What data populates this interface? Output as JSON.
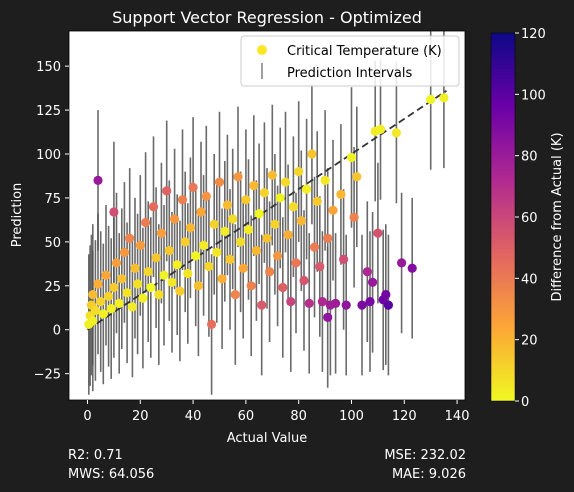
{
  "chart_data": {
    "type": "scatter",
    "title": "Support Vector Regression - Optimized",
    "xlabel": "Actual Value",
    "ylabel": "Prediction",
    "xlim": [
      -7,
      143
    ],
    "ylim": [
      -40,
      170
    ],
    "xticks": [
      0,
      20,
      40,
      60,
      80,
      100,
      120,
      140
    ],
    "yticks": [
      -25,
      0,
      25,
      50,
      75,
      100,
      125,
      150
    ],
    "legend_position": "top-right",
    "legend": [
      {
        "label": "Critical Temperature (K)",
        "kind": "marker",
        "color": "#fde725"
      },
      {
        "label": "Prediction Intervals",
        "kind": "errorbar",
        "color": "#808080"
      }
    ],
    "colorbar": {
      "label": "Difference from Actual (K)",
      "colormap": "plasma_r",
      "min": 0,
      "max": 120,
      "ticks": [
        0,
        20,
        40,
        60,
        80,
        100,
        120
      ]
    },
    "reference_line": {
      "style": "dashed",
      "color": "#333333",
      "x": [
        0,
        136
      ],
      "y": [
        0,
        136
      ]
    },
    "interval_half_width": 40,
    "series": [
      {
        "points": [
          {
            "x": 0.5,
            "y": 3
          },
          {
            "x": 1,
            "y": 8
          },
          {
            "x": 1.5,
            "y": 14
          },
          {
            "x": 2,
            "y": 5
          },
          {
            "x": 2,
            "y": 20
          },
          {
            "x": 3,
            "y": 11
          },
          {
            "x": 4,
            "y": 26
          },
          {
            "x": 4,
            "y": 85
          },
          {
            "x": 5,
            "y": 16
          },
          {
            "x": 6,
            "y": 9
          },
          {
            "x": 7,
            "y": 31
          },
          {
            "x": 8,
            "y": 19
          },
          {
            "x": 9,
            "y": 12
          },
          {
            "x": 10,
            "y": 67
          },
          {
            "x": 10,
            "y": 24
          },
          {
            "x": 11,
            "y": 38
          },
          {
            "x": 12,
            "y": 15
          },
          {
            "x": 13,
            "y": 29
          },
          {
            "x": 14,
            "y": 44
          },
          {
            "x": 15,
            "y": 21
          },
          {
            "x": 16,
            "y": 52
          },
          {
            "x": 17,
            "y": 13
          },
          {
            "x": 18,
            "y": 35
          },
          {
            "x": 19,
            "y": 26
          },
          {
            "x": 20,
            "y": 48
          },
          {
            "x": 21,
            "y": 18
          },
          {
            "x": 22,
            "y": 61
          },
          {
            "x": 23,
            "y": 33
          },
          {
            "x": 24,
            "y": 24
          },
          {
            "x": 25,
            "y": 70
          },
          {
            "x": 26,
            "y": 41
          },
          {
            "x": 27,
            "y": 20
          },
          {
            "x": 28,
            "y": 55
          },
          {
            "x": 29,
            "y": 31
          },
          {
            "x": 30,
            "y": 79
          },
          {
            "x": 31,
            "y": 45
          },
          {
            "x": 32,
            "y": 27
          },
          {
            "x": 33,
            "y": 63
          },
          {
            "x": 34,
            "y": 37
          },
          {
            "x": 35,
            "y": 22
          },
          {
            "x": 36,
            "y": 74
          },
          {
            "x": 37,
            "y": 50
          },
          {
            "x": 38,
            "y": 32
          },
          {
            "x": 39,
            "y": 58
          },
          {
            "x": 40,
            "y": 81
          },
          {
            "x": 41,
            "y": 42
          },
          {
            "x": 42,
            "y": 25
          },
          {
            "x": 43,
            "y": 67
          },
          {
            "x": 44,
            "y": 48
          },
          {
            "x": 45,
            "y": 76
          },
          {
            "x": 46,
            "y": 36
          },
          {
            "x": 47,
            "y": 3
          },
          {
            "x": 48,
            "y": 60
          },
          {
            "x": 49,
            "y": 44
          },
          {
            "x": 50,
            "y": 84
          },
          {
            "x": 51,
            "y": 29
          },
          {
            "x": 52,
            "y": 56
          },
          {
            "x": 53,
            "y": 71
          },
          {
            "x": 54,
            "y": 40
          },
          {
            "x": 55,
            "y": 63
          },
          {
            "x": 56,
            "y": 20
          },
          {
            "x": 57,
            "y": 87
          },
          {
            "x": 58,
            "y": 50
          },
          {
            "x": 59,
            "y": 35
          },
          {
            "x": 60,
            "y": 74
          },
          {
            "x": 61,
            "y": 57
          },
          {
            "x": 62,
            "y": 25
          },
          {
            "x": 63,
            "y": 82
          },
          {
            "x": 64,
            "y": 45
          },
          {
            "x": 65,
            "y": 66
          },
          {
            "x": 66,
            "y": 14
          },
          {
            "x": 67,
            "y": 78
          },
          {
            "x": 68,
            "y": 52
          },
          {
            "x": 69,
            "y": 33
          },
          {
            "x": 70,
            "y": 88
          },
          {
            "x": 71,
            "y": 60
          },
          {
            "x": 72,
            "y": 42
          },
          {
            "x": 73,
            "y": 75
          },
          {
            "x": 74,
            "y": 24
          },
          {
            "x": 75,
            "y": 84
          },
          {
            "x": 76,
            "y": 54
          },
          {
            "x": 77,
            "y": 16
          },
          {
            "x": 78,
            "y": 70
          },
          {
            "x": 79,
            "y": 38
          },
          {
            "x": 80,
            "y": 90
          },
          {
            "x": 81,
            "y": 62
          },
          {
            "x": 82,
            "y": 28
          },
          {
            "x": 83,
            "y": 80
          },
          {
            "x": 84,
            "y": 15
          },
          {
            "x": 85,
            "y": 100
          },
          {
            "x": 86,
            "y": 47
          },
          {
            "x": 87,
            "y": 73
          },
          {
            "x": 88,
            "y": 36
          },
          {
            "x": 89,
            "y": 16
          },
          {
            "x": 90,
            "y": 85
          },
          {
            "x": 91,
            "y": 52
          },
          {
            "x": 91,
            "y": 7
          },
          {
            "x": 92,
            "y": 14
          },
          {
            "x": 93,
            "y": 68
          },
          {
            "x": 94,
            "y": 15
          },
          {
            "x": 96,
            "y": 77
          },
          {
            "x": 97,
            "y": 40
          },
          {
            "x": 98,
            "y": 14
          },
          {
            "x": 100,
            "y": 98
          },
          {
            "x": 101,
            "y": 64
          },
          {
            "x": 102,
            "y": 87
          },
          {
            "x": 104,
            "y": 14
          },
          {
            "x": 106,
            "y": 33
          },
          {
            "x": 107,
            "y": 16
          },
          {
            "x": 108,
            "y": 27
          },
          {
            "x": 109,
            "y": 113
          },
          {
            "x": 110,
            "y": 55
          },
          {
            "x": 111,
            "y": 114
          },
          {
            "x": 112,
            "y": 17
          },
          {
            "x": 113,
            "y": 20
          },
          {
            "x": 114,
            "y": 14
          },
          {
            "x": 117,
            "y": 112
          },
          {
            "x": 119,
            "y": 38
          },
          {
            "x": 123,
            "y": 35
          },
          {
            "x": 130,
            "y": 131
          },
          {
            "x": 135,
            "y": 132
          }
        ]
      }
    ]
  },
  "stats": {
    "r2": "R2: 0.71",
    "mws": "MWS: 64.056",
    "mse": "MSE: 232.02",
    "mae": "MAE: 9.026"
  }
}
